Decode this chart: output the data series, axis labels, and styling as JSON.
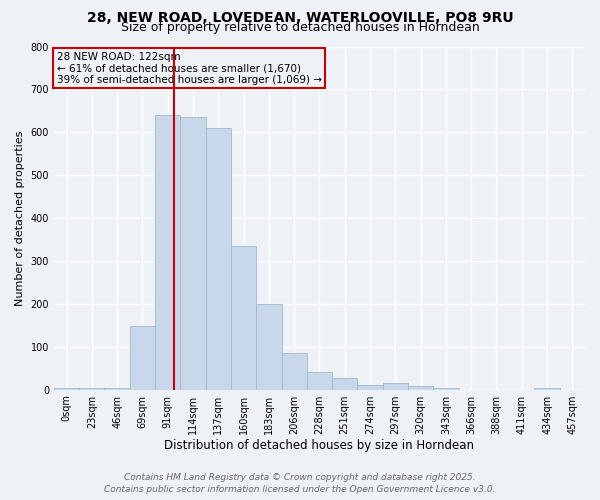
{
  "title_line1": "28, NEW ROAD, LOVEDEAN, WATERLOOVILLE, PO8 9RU",
  "title_line2": "Size of property relative to detached houses in Horndean",
  "xlabel": "Distribution of detached houses by size in Horndean",
  "ylabel": "Number of detached properties",
  "bar_labels": [
    "0sqm",
    "23sqm",
    "46sqm",
    "69sqm",
    "91sqm",
    "114sqm",
    "137sqm",
    "160sqm",
    "183sqm",
    "206sqm",
    "228sqm",
    "251sqm",
    "274sqm",
    "297sqm",
    "320sqm",
    "343sqm",
    "366sqm",
    "388sqm",
    "411sqm",
    "434sqm",
    "457sqm"
  ],
  "bar_heights": [
    5,
    5,
    5,
    148,
    640,
    635,
    610,
    335,
    200,
    85,
    42,
    27,
    12,
    15,
    8,
    5,
    0,
    0,
    0,
    3,
    0
  ],
  "bar_color": "#c8d8ea",
  "bar_edge_color": "#a0b8cc",
  "vline_x": 4.75,
  "vline_color": "#cc0000",
  "annotation_text": "28 NEW ROAD: 122sqm\n← 61% of detached houses are smaller (1,670)\n39% of semi-detached houses are larger (1,069) →",
  "annotation_box_color": "#cc0000",
  "annotation_text_color": "#000000",
  "annotation_fontsize": 7.5,
  "ylim": [
    0,
    800
  ],
  "yticks": [
    0,
    100,
    200,
    300,
    400,
    500,
    600,
    700,
    800
  ],
  "background_color": "#eef2f7",
  "grid_color": "#ffffff",
  "footer_line1": "Contains HM Land Registry data © Crown copyright and database right 2025.",
  "footer_line2": "Contains public sector information licensed under the Open Government Licence v3.0.",
  "title_fontsize": 10,
  "subtitle_fontsize": 9,
  "xlabel_fontsize": 8.5,
  "ylabel_fontsize": 8,
  "tick_fontsize": 7,
  "footer_fontsize": 6.5
}
